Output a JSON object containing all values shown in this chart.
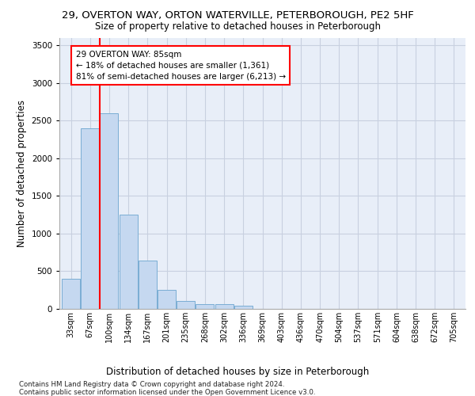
{
  "title_line1": "29, OVERTON WAY, ORTON WATERVILLE, PETERBOROUGH, PE2 5HF",
  "title_line2": "Size of property relative to detached houses in Peterborough",
  "xlabel": "Distribution of detached houses by size in Peterborough",
  "ylabel": "Number of detached properties",
  "footnote": "Contains HM Land Registry data © Crown copyright and database right 2024.\nContains public sector information licensed under the Open Government Licence v3.0.",
  "bar_labels": [
    "33sqm",
    "67sqm",
    "100sqm",
    "134sqm",
    "167sqm",
    "201sqm",
    "235sqm",
    "268sqm",
    "302sqm",
    "336sqm",
    "369sqm",
    "403sqm",
    "436sqm",
    "470sqm",
    "504sqm",
    "537sqm",
    "571sqm",
    "604sqm",
    "638sqm",
    "672sqm",
    "705sqm"
  ],
  "bar_values": [
    400,
    2400,
    2600,
    1250,
    640,
    255,
    100,
    65,
    60,
    40,
    0,
    0,
    0,
    0,
    0,
    0,
    0,
    0,
    0,
    0,
    0
  ],
  "bar_color": "#c5d8f0",
  "bar_edge_color": "#7aadd4",
  "red_line_x": 1.5,
  "annotation_text": "29 OVERTON WAY: 85sqm\n← 18% of detached houses are smaller (1,361)\n81% of semi-detached houses are larger (6,213) →",
  "ylim": [
    0,
    3600
  ],
  "yticks": [
    0,
    500,
    1000,
    1500,
    2000,
    2500,
    3000,
    3500
  ],
  "grid_color": "#c8d0e0",
  "background_color": "#e8eef8",
  "title_fontsize": 9.5,
  "subtitle_fontsize": 8.5,
  "ylabel_fontsize": 8.5,
  "xlabel_fontsize": 8.5,
  "tick_fontsize": 7,
  "annotation_fontsize": 7.5,
  "footnote_fontsize": 6.2
}
